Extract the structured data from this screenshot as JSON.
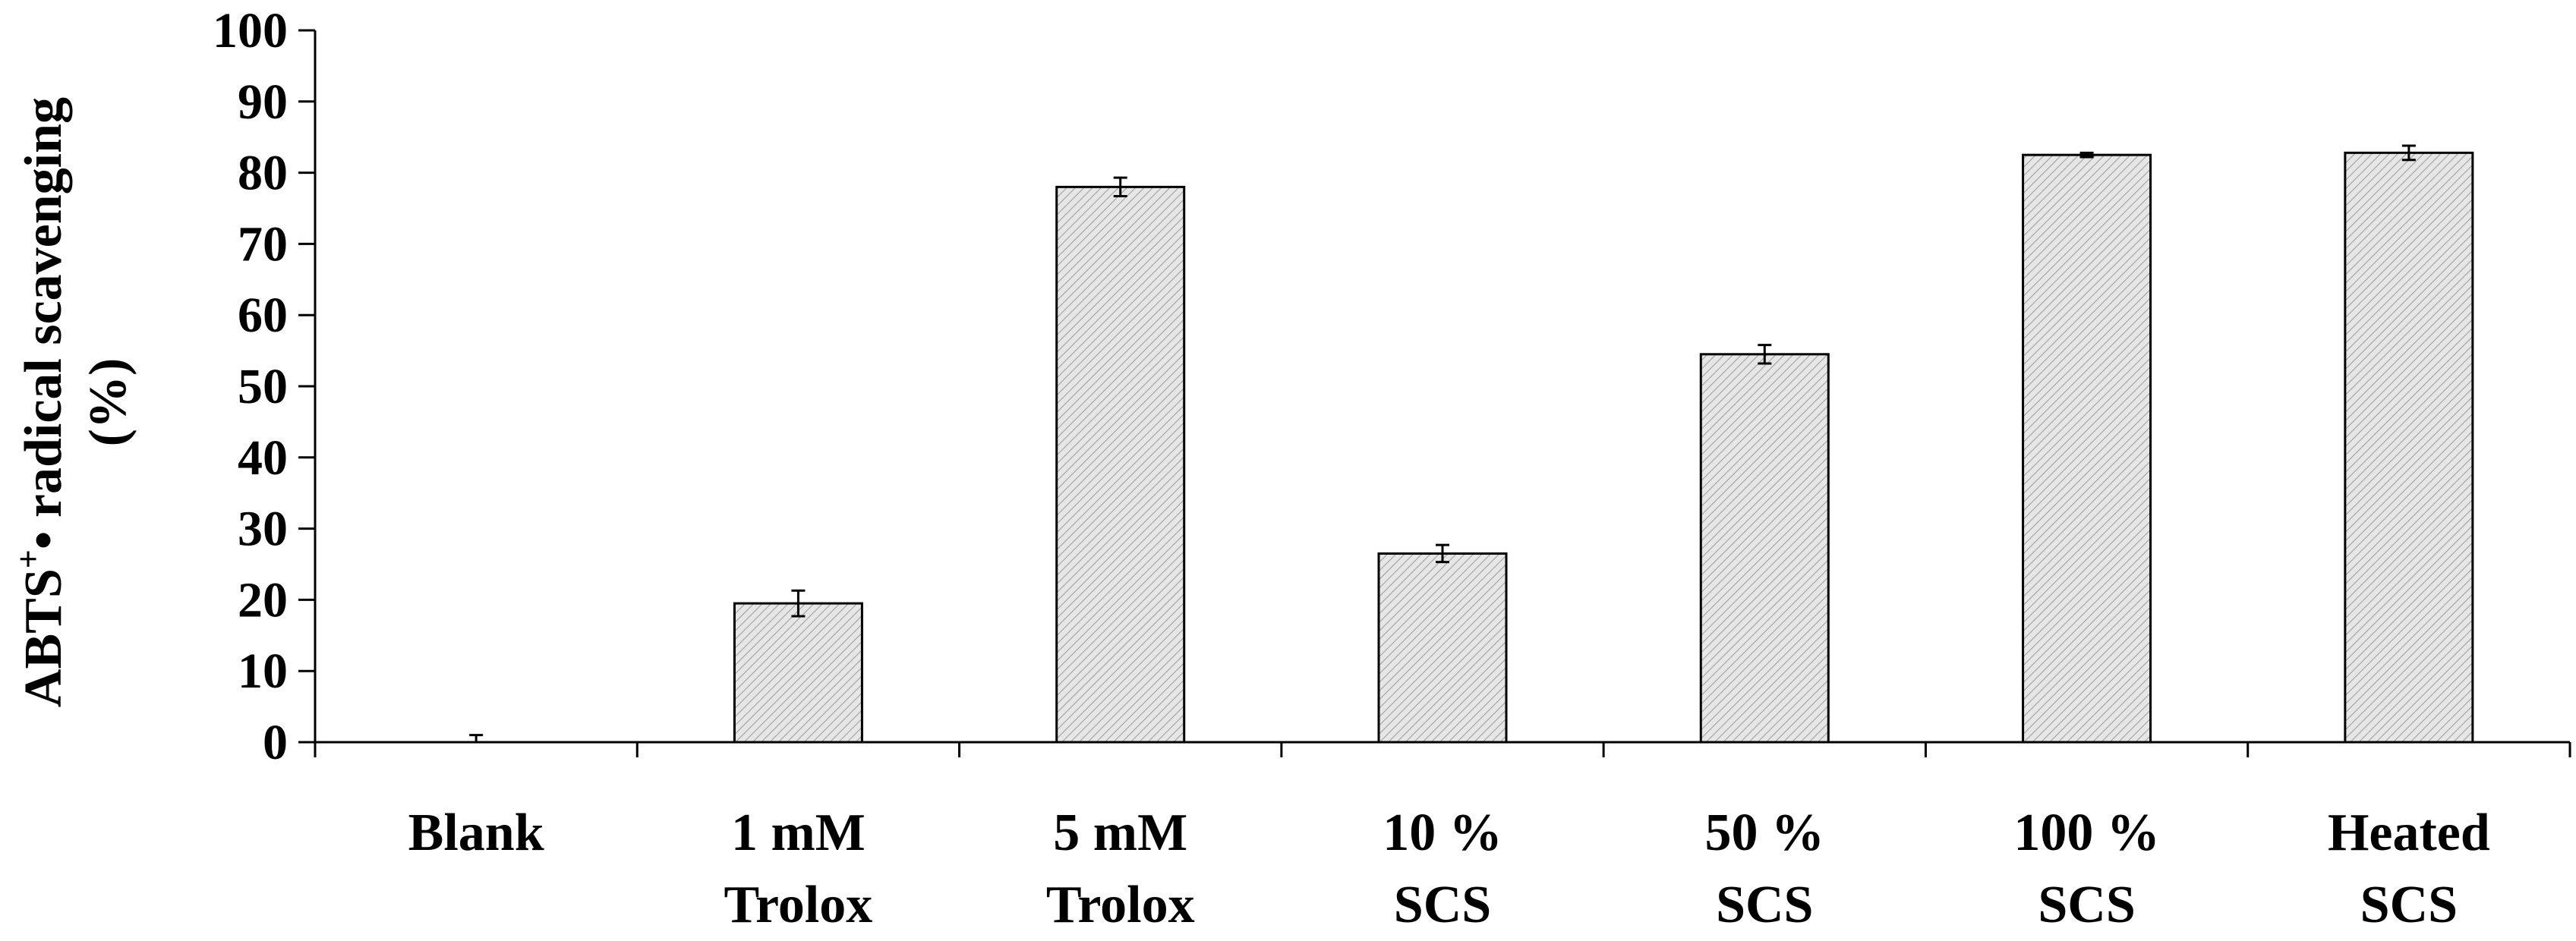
{
  "chart_data": {
    "type": "bar",
    "title": "",
    "xlabel": "",
    "ylabel": {
      "line1_prefix": "ABTS",
      "line1_superscript": "+",
      "line1_suffix": "• radical scavenging",
      "line2": "(%)"
    },
    "ylim": [
      0,
      100
    ],
    "yticks": [
      "0",
      "10",
      "20",
      "30",
      "40",
      "50",
      "60",
      "70",
      "80",
      "90",
      "100"
    ],
    "grid": false,
    "categories": [
      [
        "Blank",
        ""
      ],
      [
        "1 mM",
        "Trolox"
      ],
      [
        "5 mM",
        "Trolox"
      ],
      [
        "10 %",
        "SCS"
      ],
      [
        "50 %",
        "SCS"
      ],
      [
        "100 %",
        "SCS"
      ],
      [
        "Heated",
        "SCS"
      ]
    ],
    "values": [
      0,
      19.5,
      78,
      26.5,
      54.5,
      82.5,
      82.8
    ],
    "errors": [
      1.0,
      1.8,
      1.3,
      1.2,
      1.3,
      0.3,
      1.0
    ],
    "bar_fill": "#d9d9d9",
    "bar_stroke": "#000000"
  }
}
